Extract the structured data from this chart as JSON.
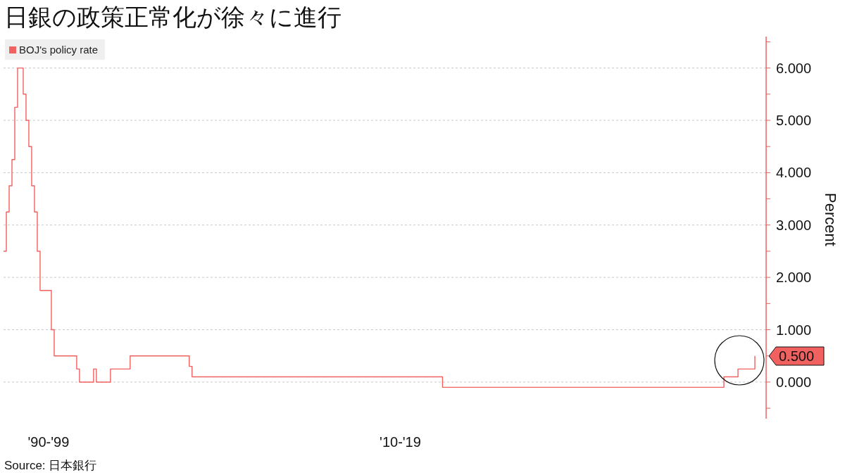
{
  "chart_data": {
    "type": "step",
    "title": "日銀の政策正常化が徐々に進行",
    "ylabel": "Percent",
    "annotations": [
      "Source: 日本銀行"
    ],
    "categories": [
      null,
      null,
      null,
      null,
      null,
      null,
      null,
      null,
      null,
      null,
      null,
      null,
      null,
      null,
      null,
      null,
      "'90-'99",
      null,
      null,
      null,
      null,
      null,
      null,
      null,
      null,
      null,
      null,
      null,
      null,
      null,
      null,
      null,
      null,
      null,
      null,
      null,
      null,
      null,
      null,
      null,
      null,
      null,
      null,
      null,
      null,
      null,
      null,
      null,
      null,
      null,
      null,
      null,
      null,
      null,
      null,
      null,
      null,
      null,
      null,
      null,
      null,
      null,
      null,
      null,
      null,
      null,
      null,
      null,
      null,
      null,
      null,
      null,
      null,
      null,
      null,
      null,
      null,
      null,
      null,
      null,
      null,
      null,
      null,
      null,
      null,
      null,
      null,
      null,
      null,
      null,
      null,
      null,
      null,
      null,
      null,
      null,
      null,
      null,
      null,
      null,
      null,
      null,
      null,
      null,
      null,
      null,
      null,
      null,
      null,
      null,
      null,
      null,
      null,
      null,
      null,
      null,
      null,
      null,
      null,
      null,
      null,
      null,
      null,
      null,
      null,
      null,
      null,
      null,
      null,
      null,
      null,
      null,
      null,
      null,
      null,
      null,
      null,
      null,
      null,
      null,
      null,
      "'10-'19",
      null,
      null,
      null,
      null,
      null,
      null,
      null,
      null,
      null,
      null,
      null,
      null,
      null,
      null,
      null,
      null,
      null,
      null,
      null,
      null,
      null,
      null,
      null,
      null,
      null,
      null,
      null,
      null,
      null,
      null,
      null,
      null,
      null,
      null,
      null,
      null,
      null,
      null,
      null,
      null,
      null,
      null,
      null,
      null,
      null,
      null,
      null,
      null,
      null,
      null,
      null,
      null,
      null,
      null,
      null,
      null,
      null,
      null,
      null,
      null,
      null,
      null,
      null,
      null,
      null,
      null,
      null,
      null,
      null,
      null,
      null,
      null,
      null,
      null,
      null,
      null,
      null,
      null,
      null,
      null,
      null,
      null,
      null,
      null,
      null,
      null,
      null,
      null,
      null,
      null,
      null,
      null,
      null,
      null,
      null,
      null,
      null,
      null,
      null,
      null,
      null,
      null,
      null,
      null,
      null,
      null,
      null,
      null,
      null,
      null,
      null,
      null,
      null,
      null,
      null,
      null,
      null,
      null,
      null,
      null,
      null,
      null,
      null,
      null,
      null,
      null,
      null,
      null,
      null,
      null
    ],
    "series": [
      {
        "name": "BOJ's policy rate",
        "color": "#f0615f",
        "values": [
          2.5,
          3.25,
          3.75,
          4.25,
          5.25,
          6,
          6,
          5.5,
          5,
          4.5,
          3.75,
          3.25,
          2.5,
          1.75,
          1.75,
          1.75,
          1.75,
          1,
          0.5,
          0.5,
          0.5,
          0.5,
          0.5,
          0.5,
          0.5,
          0.5,
          0.25,
          0,
          0,
          0,
          0,
          0,
          0.25,
          0,
          0,
          0,
          0,
          0,
          0.25,
          0.25,
          0.25,
          0.25,
          0.25,
          0.25,
          0.25,
          0.5,
          0.5,
          0.5,
          0.5,
          0.5,
          0.5,
          0.5,
          0.5,
          0.5,
          0.5,
          0.5,
          0.5,
          0.5,
          0.5,
          0.5,
          0.5,
          0.5,
          0.5,
          0.5,
          0.5,
          0.5,
          0.3,
          0.1,
          0.1,
          0.1,
          0.1,
          0.1,
          0.1,
          0.1,
          0.1,
          0.1,
          0.1,
          0.1,
          0.1,
          0.1,
          0.1,
          0.1,
          0.1,
          0.1,
          0.1,
          0.1,
          0.1,
          0.1,
          0.1,
          0.1,
          0.1,
          0.1,
          0.1,
          0.1,
          0.1,
          0.1,
          0.1,
          0.1,
          0.1,
          0.1,
          0.1,
          0.1,
          0.1,
          0.1,
          0.1,
          0.1,
          0.1,
          0.1,
          0.1,
          0.1,
          0.1,
          0.1,
          0.1,
          0.1,
          0.1,
          0.1,
          0.1,
          0.1,
          0.1,
          0.1,
          0.1,
          0.1,
          0.1,
          0.1,
          0.1,
          0.1,
          0.1,
          0.1,
          0.1,
          0.1,
          0.1,
          0.1,
          0.1,
          0.1,
          0.1,
          0.1,
          0.1,
          0.1,
          0.1,
          0.1,
          0.1,
          0.1,
          0.1,
          0.1,
          0.1,
          0.1,
          0.1,
          0.1,
          0.1,
          0.1,
          0.1,
          0.1,
          0.1,
          0.1,
          0.1,
          0.1,
          -0.1,
          -0.1,
          -0.1,
          -0.1,
          -0.1,
          -0.1,
          -0.1,
          -0.1,
          -0.1,
          -0.1,
          -0.1,
          -0.1,
          -0.1,
          -0.1,
          -0.1,
          -0.1,
          -0.1,
          -0.1,
          -0.1,
          -0.1,
          -0.1,
          -0.1,
          -0.1,
          -0.1,
          -0.1,
          -0.1,
          -0.1,
          -0.1,
          -0.1,
          -0.1,
          -0.1,
          -0.1,
          -0.1,
          -0.1,
          -0.1,
          -0.1,
          -0.1,
          -0.1,
          -0.1,
          -0.1,
          -0.1,
          -0.1,
          -0.1,
          -0.1,
          -0.1,
          -0.1,
          -0.1,
          -0.1,
          -0.1,
          -0.1,
          -0.1,
          -0.1,
          -0.1,
          -0.1,
          -0.1,
          -0.1,
          -0.1,
          -0.1,
          -0.1,
          -0.1,
          -0.1,
          -0.1,
          -0.1,
          -0.1,
          -0.1,
          -0.1,
          -0.1,
          -0.1,
          -0.1,
          -0.1,
          -0.1,
          -0.1,
          -0.1,
          -0.1,
          -0.1,
          -0.1,
          -0.1,
          -0.1,
          -0.1,
          -0.1,
          -0.1,
          -0.1,
          -0.1,
          -0.1,
          -0.1,
          -0.1,
          -0.1,
          -0.1,
          -0.1,
          -0.1,
          -0.1,
          -0.1,
          -0.1,
          -0.1,
          -0.1,
          -0.1,
          -0.1,
          -0.1,
          -0.1,
          -0.1,
          0.1,
          0.1,
          0.1,
          0.1,
          0.1,
          0.25,
          0.25,
          0.25,
          0.25,
          0.25,
          0.25,
          0.5,
          null,
          null,
          null,
          null
        ],
        "value_labels": [
          null,
          null,
          null,
          null,
          null,
          null,
          null,
          null,
          null,
          null,
          null,
          null,
          null,
          null,
          null,
          null,
          null,
          null,
          null,
          null,
          null,
          null,
          null,
          null,
          null,
          null,
          null,
          null,
          null,
          null,
          null,
          null,
          null,
          null,
          null,
          null,
          null,
          null,
          null,
          null,
          null,
          null,
          null,
          null,
          null,
          null,
          null,
          null,
          null,
          null,
          null,
          null,
          null,
          null,
          null,
          null,
          null,
          null,
          null,
          null,
          null,
          null,
          null,
          null,
          null,
          null,
          null,
          null,
          null,
          null,
          null,
          null,
          null,
          null,
          null,
          null,
          null,
          null,
          null,
          null,
          null,
          null,
          null,
          null,
          null,
          null,
          null,
          null,
          null,
          null,
          null,
          null,
          null,
          null,
          null,
          null,
          null,
          null,
          null,
          null,
          null,
          null,
          null,
          null,
          null,
          null,
          null,
          null,
          null,
          null,
          null,
          null,
          null,
          null,
          null,
          null,
          null,
          null,
          null,
          null,
          null,
          null,
          null,
          null,
          null,
          null,
          null,
          null,
          null,
          null,
          null,
          null,
          null,
          null,
          null,
          null,
          null,
          null,
          null,
          null,
          null,
          null,
          null,
          null,
          null,
          null,
          null,
          null,
          null,
          null,
          null,
          null,
          null,
          null,
          null,
          null,
          null,
          null,
          null,
          null,
          null,
          null,
          null,
          null,
          null,
          null,
          null,
          null,
          null,
          null,
          null,
          null,
          null,
          null,
          null,
          null,
          null,
          null,
          null,
          null,
          null,
          null,
          null,
          null,
          null,
          null,
          null,
          null,
          null,
          null,
          null,
          null,
          null,
          null,
          null,
          null,
          null,
          null,
          null,
          null,
          null,
          null,
          null,
          null,
          null,
          null,
          null,
          null,
          null,
          null,
          null,
          null,
          null,
          null,
          null,
          null,
          null,
          null,
          null,
          null,
          null,
          null,
          null,
          null,
          null,
          null,
          null,
          null,
          null,
          null,
          null,
          null,
          null,
          null,
          null,
          null,
          null,
          null,
          null,
          null,
          null,
          null,
          null,
          null,
          null,
          null,
          null,
          null,
          null,
          null,
          null,
          null,
          null,
          null,
          null,
          null,
          null,
          null,
          null,
          null,
          null,
          null,
          null,
          null,
          null,
          null,
          null,
          "0.500",
          null,
          null,
          null,
          null
        ]
      }
    ],
    "ylim": [
      -0.7,
      6.6
    ],
    "yticks": [
      {
        "value": -0.5,
        "label": null
      },
      {
        "value": 0,
        "label": "0.000"
      },
      {
        "value": 0.5,
        "label": null
      },
      {
        "value": 1,
        "label": "1.000"
      },
      {
        "value": 1.5,
        "label": null
      },
      {
        "value": 2,
        "label": "2.000"
      },
      {
        "value": 2.5,
        "label": null
      },
      {
        "value": 3,
        "label": "3.000"
      },
      {
        "value": 3.5,
        "label": null
      },
      {
        "value": 4,
        "label": "4.000"
      },
      {
        "value": 4.5,
        "label": null
      },
      {
        "value": 5,
        "label": "5.000"
      },
      {
        "value": 5.5,
        "label": null
      },
      {
        "value": 6,
        "label": "6.000"
      },
      {
        "value": 6.5,
        "label": null
      }
    ],
    "grid": "y",
    "legend": "top left"
  }
}
